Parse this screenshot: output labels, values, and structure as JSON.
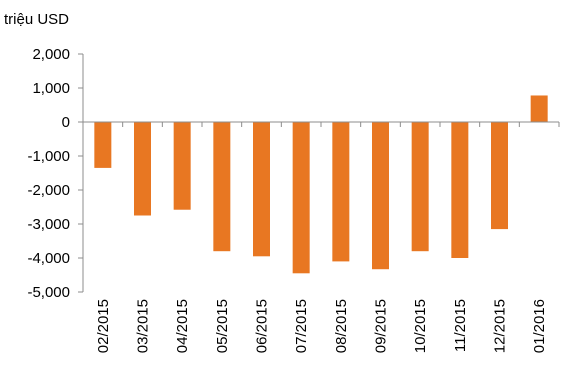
{
  "chart_data": {
    "type": "bar",
    "unit_label": "triệu USD",
    "categories": [
      "02/2015",
      "03/2015",
      "04/2015",
      "05/2015",
      "06/2015",
      "07/2015",
      "08/2015",
      "09/2015",
      "10/2015",
      "11/2015",
      "12/2015",
      "01/2016"
    ],
    "series": [
      {
        "values": [
          -1350,
          -2750,
          -2580,
          -3800,
          -3950,
          -4450,
          -4100,
          -4330,
          -3800,
          -4000,
          -3150,
          780
        ]
      }
    ],
    "ylim": [
      -5000,
      2000
    ],
    "yticks": [
      2000,
      1000,
      0,
      -1000,
      -2000,
      -3000,
      -4000,
      -5000
    ],
    "ytick_labels": [
      "2,000",
      "1,000",
      "0",
      "-1,000",
      "-2,000",
      "-3,000",
      "-4,000",
      "-5,000"
    ],
    "bar_color": "#E87722",
    "axis_color": "#8c8c8c",
    "grid": false,
    "legend": false
  }
}
